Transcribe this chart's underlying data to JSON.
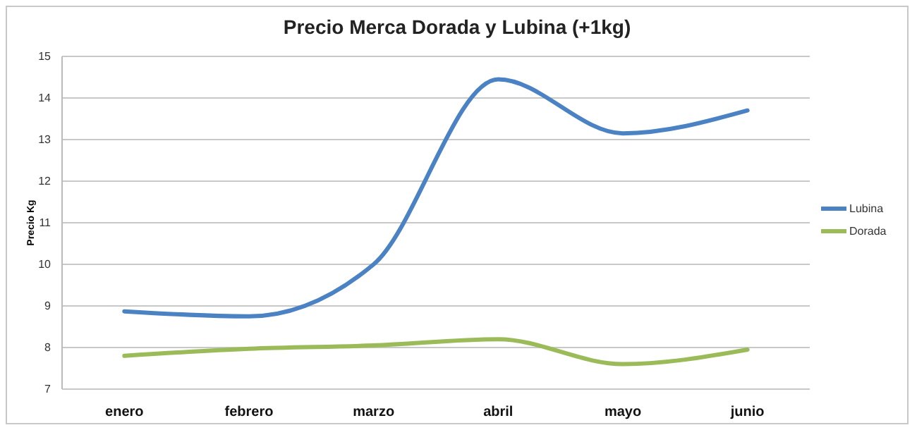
{
  "chart_data": {
    "type": "line",
    "title": "Precio Merca Dorada y Lubina (+1kg)",
    "ylabel": "Precio Kg",
    "categories": [
      "enero",
      "febrero",
      "marzo",
      "abril",
      "mayo",
      "junio"
    ],
    "series": [
      {
        "name": "Lubina",
        "color": "#4a82c4",
        "values": [
          8.87,
          8.75,
          10.0,
          14.45,
          13.15,
          13.7
        ]
      },
      {
        "name": "Dorada",
        "color": "#9bbb59",
        "values": [
          7.8,
          7.97,
          8.05,
          8.2,
          7.6,
          7.95
        ]
      }
    ],
    "ylim": [
      7,
      15
    ],
    "yticks": [
      7,
      8,
      9,
      10,
      11,
      12,
      13,
      14,
      15
    ],
    "grid": "y",
    "legend": "right",
    "marker": "none",
    "line_style": "solid"
  }
}
